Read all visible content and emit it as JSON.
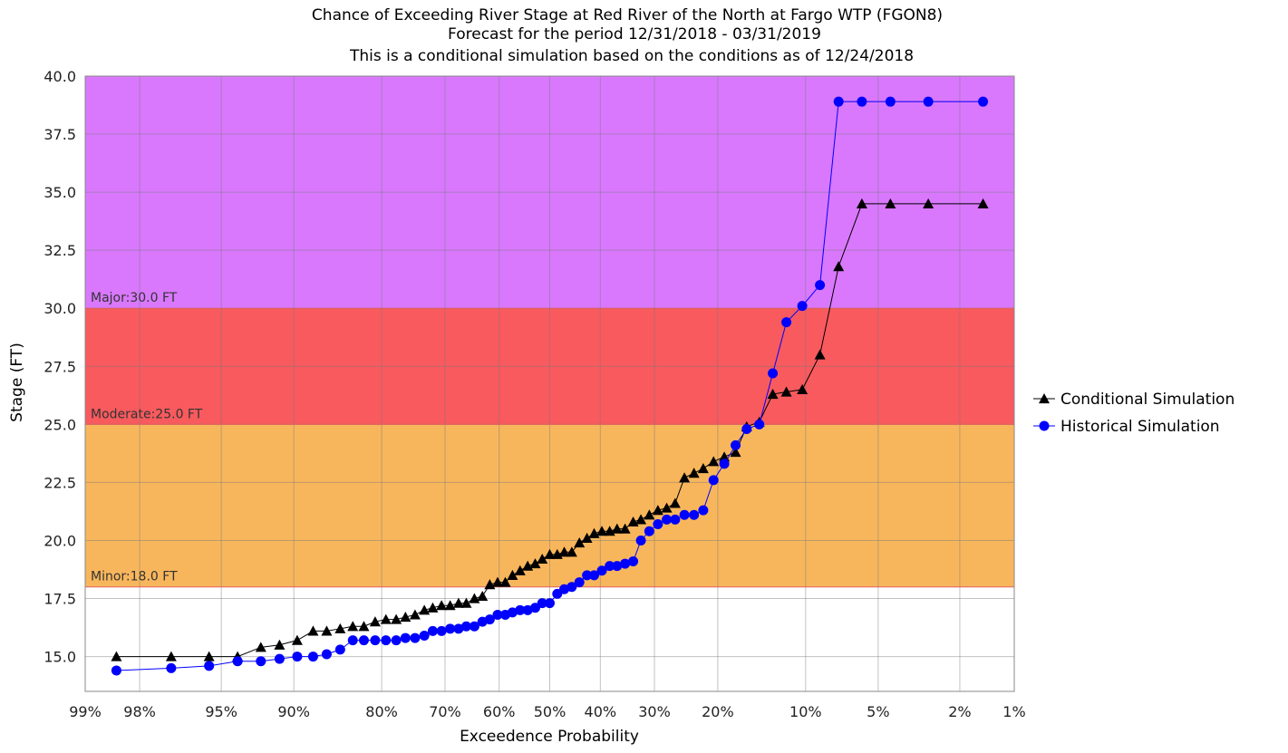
{
  "chart_data": {
    "type": "line",
    "title_lines": [
      "Chance of Exceeding River Stage at Red River of the North at Fargo WTP (FGON8)",
      "Forecast for the period 12/31/2018 - 03/31/2019",
      "This is a conditional simulation based on the conditions as of 12/24/2018"
    ],
    "xlabel": "Exceedence Probability",
    "ylabel": "Stage (FT)",
    "x_scale": "normal-probability",
    "x_ticks": [
      99,
      98,
      95,
      90,
      80,
      70,
      60,
      50,
      40,
      30,
      20,
      10,
      5,
      2,
      1
    ],
    "x_tick_labels": [
      "99%",
      "98%",
      "95%",
      "90%",
      "80%",
      "70%",
      "60%",
      "50%",
      "40%",
      "30%",
      "20%",
      "10%",
      "5%",
      "2%",
      "1%"
    ],
    "ylim": [
      13.5,
      40
    ],
    "y_ticks": [
      15.0,
      17.5,
      20.0,
      22.5,
      25.0,
      27.5,
      30.0,
      32.5,
      35.0,
      37.5,
      40.0
    ],
    "y_tick_labels": [
      "15.0",
      "17.5",
      "20.0",
      "22.5",
      "25.0",
      "27.5",
      "30.0",
      "32.5",
      "35.0",
      "37.5",
      "40.0"
    ],
    "grid": true,
    "legend_position": "right",
    "zones": [
      {
        "from": 18.0,
        "to": 25.0,
        "color": "#f8b65c",
        "label": "Minor:18.0 FT"
      },
      {
        "from": 25.0,
        "to": 30.0,
        "color": "#f85a5e",
        "label": "Moderate:25.0 FT"
      },
      {
        "from": 30.0,
        "to": 40.0,
        "color": "#d978fd",
        "label": "Major:30.0 FT"
      }
    ],
    "series": [
      {
        "name": "Conditional Simulation",
        "color": "#000000",
        "marker": "triangle",
        "x": [
          98.5,
          97.1,
          95.6,
          94.1,
          92.6,
          91.2,
          89.7,
          88.2,
          86.8,
          85.3,
          83.8,
          82.4,
          80.9,
          79.4,
          77.9,
          76.5,
          75.0,
          73.5,
          72.1,
          70.6,
          69.1,
          67.6,
          66.2,
          64.7,
          63.2,
          61.8,
          60.3,
          58.8,
          57.4,
          55.9,
          54.4,
          52.9,
          51.5,
          50.0,
          48.5,
          47.1,
          45.6,
          44.1,
          42.6,
          41.2,
          39.7,
          38.2,
          36.8,
          35.3,
          33.8,
          32.4,
          30.9,
          29.4,
          27.9,
          26.5,
          25.0,
          23.5,
          22.1,
          20.6,
          19.1,
          17.6,
          16.2,
          14.7,
          13.2,
          11.8,
          10.3,
          8.8,
          7.4,
          5.9,
          4.4,
          2.9,
          1.5
        ],
        "y": [
          15.0,
          15.0,
          15.0,
          15.0,
          15.4,
          15.5,
          15.7,
          16.1,
          16.1,
          16.2,
          16.3,
          16.3,
          16.5,
          16.6,
          16.6,
          16.7,
          16.8,
          17.0,
          17.1,
          17.2,
          17.2,
          17.3,
          17.3,
          17.5,
          17.6,
          18.1,
          18.2,
          18.2,
          18.5,
          18.7,
          18.9,
          19.0,
          19.2,
          19.4,
          19.4,
          19.5,
          19.5,
          19.9,
          20.1,
          20.3,
          20.4,
          20.4,
          20.5,
          20.5,
          20.8,
          20.9,
          21.1,
          21.3,
          21.4,
          21.6,
          22.7,
          22.9,
          23.1,
          23.4,
          23.6,
          23.8,
          24.9,
          25.1,
          26.3,
          26.4,
          26.5,
          28.0,
          31.8,
          34.5,
          34.5,
          34.5,
          34.5
        ]
      },
      {
        "name": "Historical Simulation",
        "color": "#0000ff",
        "marker": "circle",
        "x": [
          98.5,
          97.1,
          95.6,
          94.1,
          92.6,
          91.2,
          89.7,
          88.2,
          86.8,
          85.3,
          83.8,
          82.4,
          80.9,
          79.4,
          77.9,
          76.5,
          75.0,
          73.5,
          72.1,
          70.6,
          69.1,
          67.6,
          66.2,
          64.7,
          63.2,
          61.8,
          60.3,
          58.8,
          57.4,
          55.9,
          54.4,
          52.9,
          51.5,
          50.0,
          48.5,
          47.1,
          45.6,
          44.1,
          42.6,
          41.2,
          39.7,
          38.2,
          36.8,
          35.3,
          33.8,
          32.4,
          30.9,
          29.4,
          27.9,
          26.5,
          25.0,
          23.5,
          22.1,
          20.6,
          19.1,
          17.6,
          16.2,
          14.7,
          13.2,
          11.8,
          10.3,
          8.8,
          7.4,
          5.9,
          4.4,
          2.9,
          1.5
        ],
        "y": [
          14.4,
          14.5,
          14.6,
          14.8,
          14.8,
          14.9,
          15.0,
          15.0,
          15.1,
          15.3,
          15.7,
          15.7,
          15.7,
          15.7,
          15.7,
          15.8,
          15.8,
          15.9,
          16.1,
          16.1,
          16.2,
          16.2,
          16.3,
          16.3,
          16.5,
          16.6,
          16.8,
          16.8,
          16.9,
          17.0,
          17.0,
          17.1,
          17.3,
          17.3,
          17.7,
          17.9,
          18.0,
          18.2,
          18.5,
          18.5,
          18.7,
          18.9,
          18.9,
          19.0,
          19.1,
          20.0,
          20.4,
          20.7,
          20.9,
          20.9,
          21.1,
          21.1,
          21.3,
          22.6,
          23.3,
          24.1,
          24.8,
          25.0,
          27.2,
          29.4,
          30.1,
          31.0,
          38.9,
          38.9,
          38.9,
          38.9,
          38.9
        ]
      }
    ]
  }
}
